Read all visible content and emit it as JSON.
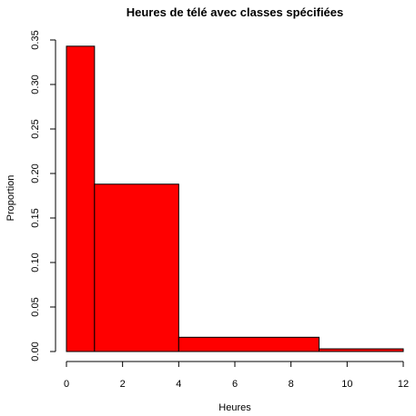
{
  "chart_data": {
    "type": "bar",
    "title": "Heures de télé avec classes spécifiées",
    "xlabel": "Heures",
    "ylabel": "Proportion",
    "xlim": [
      0,
      12
    ],
    "ylim": [
      0,
      0.35
    ],
    "x_ticks": [
      0,
      2,
      4,
      6,
      8,
      10,
      12
    ],
    "x_tick_labels": [
      "0",
      "2",
      "4",
      "6",
      "8",
      "10",
      "12"
    ],
    "y_ticks": [
      0,
      0.05,
      0.1,
      0.15,
      0.2,
      0.25,
      0.3,
      0.35
    ],
    "y_tick_labels": [
      "0.00",
      "0.05",
      "0.10",
      "0.15",
      "0.20",
      "0.25",
      "0.30",
      "0.35"
    ],
    "bins": [
      {
        "from": 0,
        "to": 1,
        "value": 0.343
      },
      {
        "from": 1,
        "to": 4,
        "value": 0.188
      },
      {
        "from": 4,
        "to": 9,
        "value": 0.016
      },
      {
        "from": 9,
        "to": 12,
        "value": 0.003
      }
    ],
    "bar_color": "#ff0000",
    "bar_edge_color": "#000000",
    "grid": false
  }
}
